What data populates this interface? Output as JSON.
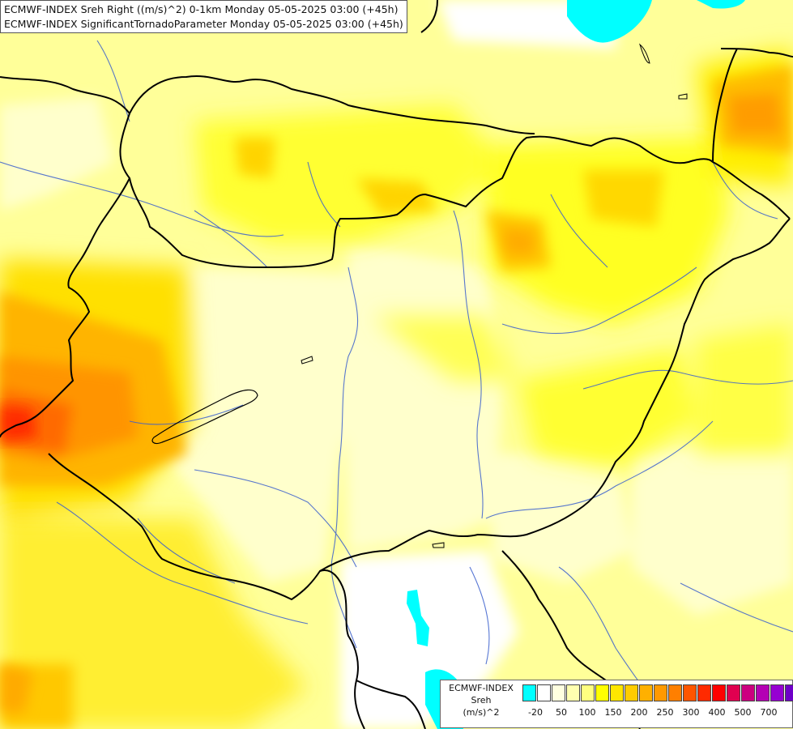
{
  "header": {
    "line1": "ECMWF-INDEX Sreh Right ((m/s)^2) 0-1km Monday 05-05-2025 03:00 (+45h)",
    "line2": "ECMWF-INDEX SignificantTornadoParameter Monday 05-05-2025 03:00 (+45h)"
  },
  "legend": {
    "source": "ECMWF-INDEX",
    "parameter": "Sreh",
    "unit": "(m/s)^2",
    "colors": [
      "#00ffff",
      "#ffffff",
      "#ffffe0",
      "#ffffb0",
      "#ffff80",
      "#ffff00",
      "#ffe600",
      "#ffcc00",
      "#ffb000",
      "#ff9900",
      "#ff7f00",
      "#ff5500",
      "#ff2a00",
      "#ff0000",
      "#e00050",
      "#cc0080",
      "#b400b4",
      "#9600d2",
      "#6e00c8",
      "#4600a0",
      "#1e007d"
    ],
    "ticks": [
      "-20",
      "50",
      "100",
      "150",
      "200",
      "250",
      "300",
      "400",
      "500",
      "700"
    ]
  },
  "map": {
    "field_colors": {
      "water": "#00ffff",
      "zero": "#ffffff",
      "very_low": "#ffffc0",
      "low": "#ffff96",
      "moderate": "#ffff00",
      "elevated": "#ffd700",
      "high": "#ffa500",
      "very_high": "#ff7000",
      "peak": "#ff3000"
    },
    "border_color": "#000000",
    "river_color": "#3a5fcd"
  }
}
